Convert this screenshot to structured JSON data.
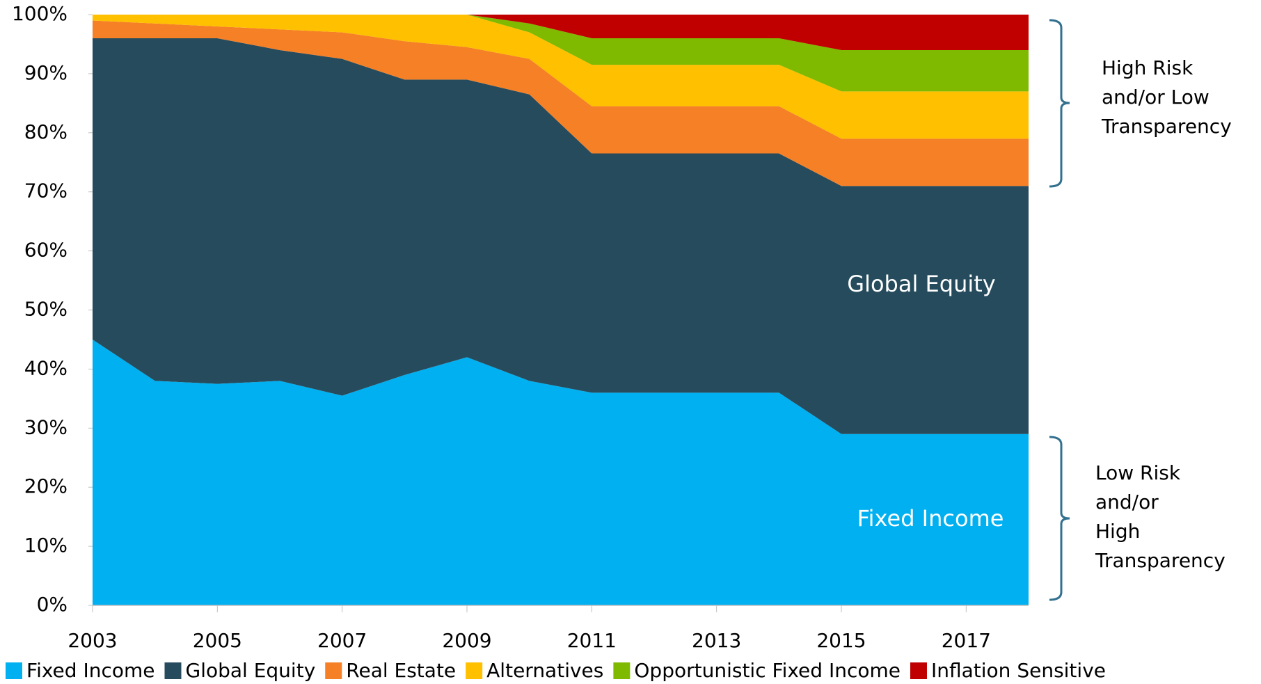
{
  "chart_data": {
    "type": "stacked-area",
    "x": [
      2003,
      2004,
      2005,
      2006,
      2007,
      2008,
      2009,
      2010,
      2011,
      2012,
      2013,
      2014,
      2015,
      2016,
      2017,
      2018
    ],
    "xlim": [
      2003,
      2018
    ],
    "xticks": [
      2003,
      2005,
      2007,
      2009,
      2011,
      2013,
      2015,
      2017
    ],
    "ylim": [
      0,
      100
    ],
    "yticks": [
      {
        "value": 0,
        "label": "0%"
      },
      {
        "value": 10,
        "label": "10%"
      },
      {
        "value": 20,
        "label": "20%"
      },
      {
        "value": 30,
        "label": "30%"
      },
      {
        "value": 40,
        "label": "40%"
      },
      {
        "value": 50,
        "label": "50%"
      },
      {
        "value": 60,
        "label": "60%"
      },
      {
        "value": 70,
        "label": "70%"
      },
      {
        "value": 80,
        "label": "80%"
      },
      {
        "value": 90,
        "label": "90%"
      },
      {
        "value": 100,
        "label": "100%"
      }
    ],
    "series": [
      {
        "name": "Fixed Income",
        "color": "#00b0f0",
        "values": [
          45,
          38,
          37.5,
          38,
          35.5,
          39,
          42,
          38,
          36,
          36,
          36,
          36,
          29,
          29,
          29,
          29
        ]
      },
      {
        "name": "Global Equity",
        "color": "#264b5d",
        "values": [
          51,
          58,
          58.5,
          56,
          57,
          50,
          47,
          48.5,
          40.5,
          40.5,
          40.5,
          40.5,
          42,
          42,
          42,
          42
        ]
      },
      {
        "name": "Real Estate",
        "color": "#f58025",
        "values": [
          3,
          2.5,
          2,
          3.5,
          4.5,
          6.5,
          5.5,
          6,
          8,
          8,
          8,
          8,
          8,
          8,
          8,
          8
        ]
      },
      {
        "name": "Alternatives",
        "color": "#ffc000",
        "values": [
          1,
          1.5,
          2,
          2.5,
          3,
          4.5,
          5.5,
          4.5,
          7,
          7,
          7,
          7,
          8,
          8,
          8,
          8
        ]
      },
      {
        "name": "Opportunistic Fixed Income",
        "color": "#7fba00",
        "values": [
          0,
          0,
          0,
          0,
          0,
          0,
          0,
          1.5,
          4.5,
          4.5,
          4.5,
          4.5,
          7,
          7,
          7,
          7
        ]
      },
      {
        "name": "Inflation Sensitive",
        "color": "#c00000",
        "values": [
          0,
          0,
          0,
          0,
          0,
          0,
          0,
          1.5,
          4,
          4,
          4,
          4,
          6,
          6,
          6,
          6
        ]
      }
    ],
    "annotations": {
      "global_equity": "Global Equity",
      "fixed_income": "Fixed Income",
      "high_risk": [
        "High Risk",
        "and/or Low",
        "Transparency"
      ],
      "low_risk": [
        "Low Risk",
        "and/or",
        "High",
        "Transparency"
      ]
    }
  }
}
